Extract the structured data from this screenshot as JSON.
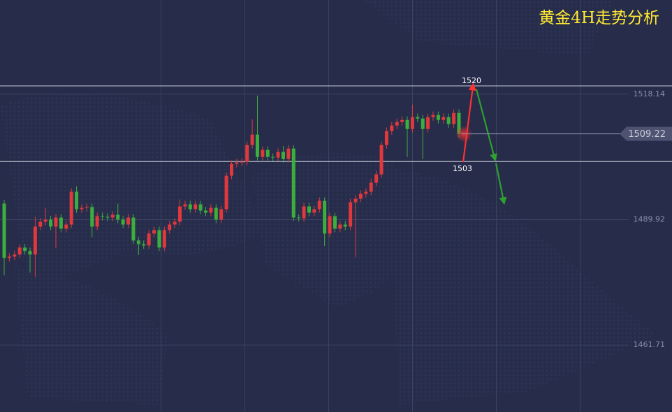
{
  "chart_data": {
    "type": "candlestick",
    "title": "黄金4H走势分析",
    "ylim": [
      1446.66,
      1539.31
    ],
    "yticks": [
      1461.71,
      1489.92,
      1518.14
    ],
    "grid": true,
    "up_color": "#e0383c",
    "down_color": "#3cae3c",
    "last_price": 1509.22,
    "levels": [
      1520,
      1503
    ],
    "candles": [
      [
        1493.53,
        1494.33,
        1477.4,
        1481.3
      ],
      [
        1481.3,
        1482.41,
        1480.5,
        1481.61
      ],
      [
        1481.61,
        1482.88,
        1480.81,
        1482.08
      ],
      [
        1482.08,
        1484.45,
        1481.28,
        1483.65
      ],
      [
        1483.65,
        1484.45,
        1482.07,
        1482.87
      ],
      [
        1482.87,
        1483.67,
        1478.0,
        1482.08
      ],
      [
        1482.08,
        1490.5,
        1477.0,
        1488.35
      ],
      [
        1488.35,
        1490.25,
        1487.55,
        1489.45
      ],
      [
        1489.45,
        1492.6,
        1488.65,
        1489.92
      ],
      [
        1489.92,
        1490.72,
        1487.55,
        1488.35
      ],
      [
        1488.35,
        1491.19,
        1483.5,
        1490.39
      ],
      [
        1490.39,
        1491.19,
        1487.08,
        1487.88
      ],
      [
        1487.88,
        1489.62,
        1487.08,
        1488.82
      ],
      [
        1488.82,
        1496.99,
        1488.02,
        1496.19
      ],
      [
        1496.19,
        1497.4,
        1491.47,
        1492.27
      ],
      [
        1492.27,
        1493.38,
        1491.47,
        1492.58
      ],
      [
        1492.58,
        1493.54,
        1491.78,
        1492.74
      ],
      [
        1492.74,
        1493.54,
        1486.0,
        1488.35
      ],
      [
        1488.35,
        1491.5,
        1487.55,
        1490.7
      ],
      [
        1490.7,
        1491.5,
        1489.75,
        1490.55
      ],
      [
        1490.55,
        1491.35,
        1489.59,
        1490.39
      ],
      [
        1490.39,
        1491.82,
        1489.59,
        1491.02
      ],
      [
        1491.02,
        1493.5,
        1489.12,
        1489.92
      ],
      [
        1489.92,
        1490.72,
        1488.02,
        1488.82
      ],
      [
        1488.82,
        1491.19,
        1488.02,
        1490.39
      ],
      [
        1490.39,
        1491.19,
        1484.42,
        1485.22
      ],
      [
        1485.22,
        1486.02,
        1482.0,
        1484.43
      ],
      [
        1484.43,
        1485.23,
        1483.32,
        1484.12
      ],
      [
        1484.12,
        1487.59,
        1483.32,
        1486.79
      ],
      [
        1486.79,
        1488.37,
        1485.99,
        1487.57
      ],
      [
        1487.57,
        1488.37,
        1482.85,
        1483.65
      ],
      [
        1483.65,
        1488.37,
        1482.85,
        1487.57
      ],
      [
        1487.57,
        1489.62,
        1486.77,
        1488.82
      ],
      [
        1488.82,
        1490.25,
        1488.02,
        1489.45
      ],
      [
        1489.45,
        1494.5,
        1488.65,
        1492.9
      ],
      [
        1492.9,
        1494.17,
        1492.1,
        1493.37
      ],
      [
        1493.37,
        1494.17,
        1491.47,
        1492.27
      ],
      [
        1492.27,
        1494.17,
        1491.47,
        1493.37
      ],
      [
        1493.37,
        1494.17,
        1491.16,
        1491.96
      ],
      [
        1491.96,
        1492.76,
        1490.69,
        1491.49
      ],
      [
        1491.49,
        1493.38,
        1490.69,
        1492.58
      ],
      [
        1492.58,
        1493.38,
        1489.12,
        1489.92
      ],
      [
        1489.92,
        1493.07,
        1489.12,
        1492.27
      ],
      [
        1492.27,
        1500.6,
        1491.47,
        1499.8
      ],
      [
        1499.8,
        1503.26,
        1499.0,
        1502.46
      ],
      [
        1502.46,
        1503.58,
        1501.66,
        1502.78
      ],
      [
        1502.78,
        1503.74,
        1501.98,
        1502.94
      ],
      [
        1502.94,
        1507.5,
        1502.14,
        1506.7
      ],
      [
        1506.7,
        1512.5,
        1505.9,
        1509.05
      ],
      [
        1509.05,
        1517.83,
        1503.23,
        1504.03
      ],
      [
        1504.03,
        1506.4,
        1503.23,
        1505.6
      ],
      [
        1505.6,
        1506.4,
        1503.23,
        1504.03
      ],
      [
        1504.03,
        1504.83,
        1503.08,
        1503.88
      ],
      [
        1503.88,
        1505.93,
        1503.08,
        1505.13
      ],
      [
        1505.13,
        1506.5,
        1502.76,
        1503.56
      ],
      [
        1503.56,
        1506.71,
        1502.76,
        1505.91
      ],
      [
        1505.91,
        1506.71,
        1489.59,
        1490.39
      ],
      [
        1490.39,
        1491.19,
        1489.43,
        1490.23
      ],
      [
        1490.23,
        1493.7,
        1489.43,
        1492.9
      ],
      [
        1492.9,
        1493.7,
        1490.69,
        1491.49
      ],
      [
        1491.49,
        1493.07,
        1490.69,
        1492.27
      ],
      [
        1492.27,
        1494.95,
        1491.47,
        1494.15
      ],
      [
        1494.15,
        1494.95,
        1484.0,
        1486.79
      ],
      [
        1486.79,
        1491.5,
        1485.99,
        1490.7
      ],
      [
        1490.7,
        1491.5,
        1487.08,
        1487.88
      ],
      [
        1487.88,
        1489.62,
        1487.08,
        1488.82
      ],
      [
        1488.82,
        1489.62,
        1487.55,
        1488.35
      ],
      [
        1488.35,
        1494.64,
        1487.55,
        1493.84
      ],
      [
        1493.84,
        1495.42,
        1481.5,
        1494.62
      ],
      [
        1494.62,
        1496.52,
        1493.82,
        1495.72
      ],
      [
        1495.72,
        1496.99,
        1494.92,
        1496.19
      ],
      [
        1496.19,
        1499.03,
        1495.39,
        1498.23
      ],
      [
        1498.23,
        1500.91,
        1497.43,
        1500.11
      ],
      [
        1500.11,
        1507.5,
        1499.31,
        1506.7
      ],
      [
        1506.7,
        1510.63,
        1505.9,
        1509.83
      ],
      [
        1509.83,
        1511.89,
        1509.03,
        1511.09
      ],
      [
        1511.09,
        1512.67,
        1510.29,
        1511.87
      ],
      [
        1511.87,
        1513.14,
        1511.07,
        1512.34
      ],
      [
        1512.34,
        1513.14,
        1504.0,
        1510.3
      ],
      [
        1510.3,
        1515.79,
        1509.5,
        1512.97
      ],
      [
        1512.97,
        1513.77,
        1511.85,
        1512.65
      ],
      [
        1512.65,
        1513.45,
        1503.5,
        1510.3
      ],
      [
        1510.3,
        1513.77,
        1509.5,
        1512.97
      ],
      [
        1512.97,
        1514.24,
        1512.17,
        1513.44
      ],
      [
        1513.44,
        1514.24,
        1511.54,
        1512.34
      ],
      [
        1512.34,
        1513.77,
        1511.54,
        1512.97
      ],
      [
        1512.97,
        1513.77,
        1510.6,
        1511.4
      ],
      [
        1511.4,
        1514.71,
        1510.6,
        1513.91
      ],
      [
        1513.91,
        1514.71,
        1508.41,
        1509.22
      ]
    ]
  }
}
